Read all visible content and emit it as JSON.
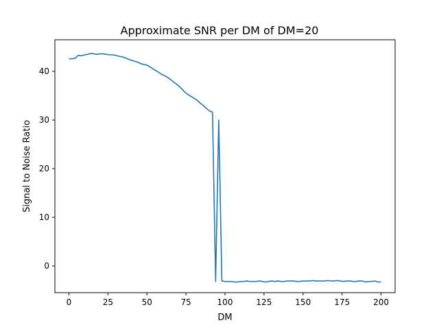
{
  "chart_data": {
    "type": "line",
    "title": "Approximate SNR per DM of DM=20",
    "xlabel": "DM",
    "ylabel": "Signal to Noise Ratio",
    "xlim": [
      -9,
      209
    ],
    "ylim": [
      -5.5,
      46.5
    ],
    "xticks": [
      0,
      25,
      50,
      75,
      100,
      125,
      150,
      175,
      200
    ],
    "yticks": [
      0,
      10,
      20,
      30,
      40
    ],
    "grid": false,
    "color": "#1f77b4",
    "series": [
      {
        "x": [
          0,
          2,
          4,
          6,
          8,
          10,
          12,
          14,
          16,
          18,
          20,
          22,
          24,
          26,
          28,
          30,
          32,
          34,
          36,
          38,
          40,
          42,
          44,
          46,
          48,
          50,
          52,
          54,
          56,
          58,
          60,
          62,
          64,
          66,
          68,
          70,
          72,
          74,
          76,
          78,
          80,
          82,
          84,
          86,
          88,
          90,
          92,
          94,
          96,
          98,
          100,
          102,
          104,
          106,
          108,
          110,
          112,
          114,
          116,
          118,
          120,
          122,
          124,
          126,
          128,
          130,
          132,
          134,
          136,
          138,
          140,
          142,
          144,
          146,
          148,
          150,
          152,
          154,
          156,
          158,
          160,
          162,
          164,
          166,
          168,
          170,
          172,
          174,
          176,
          178,
          180,
          182,
          184,
          186,
          188,
          190,
          192,
          194,
          196,
          198,
          200
        ],
        "y": [
          42.6,
          42.6,
          42.7,
          43.3,
          43.2,
          43.4,
          43.5,
          43.7,
          43.6,
          43.5,
          43.6,
          43.6,
          43.5,
          43.4,
          43.4,
          43.3,
          43.1,
          43.0,
          42.8,
          42.5,
          42.3,
          42.1,
          41.9,
          41.6,
          41.4,
          41.3,
          40.9,
          40.5,
          40.1,
          39.7,
          39.3,
          39.0,
          38.6,
          38.1,
          37.6,
          37.1,
          36.5,
          35.8,
          35.3,
          34.9,
          34.5,
          34.1,
          33.5,
          33.0,
          32.4,
          31.9,
          31.6,
          -3.2,
          30.0,
          -3.1,
          -3.2,
          -3.2,
          -3.2,
          -3.3,
          -3.3,
          -3.2,
          -3.2,
          -3.1,
          -3.2,
          -3.2,
          -3.2,
          -3.1,
          -3.2,
          -3.3,
          -3.2,
          -3.1,
          -3.2,
          -3.1,
          -3.2,
          -3.2,
          -3.1,
          -3.1,
          -3.1,
          -3.2,
          -3.2,
          -3.1,
          -3.1,
          -3.1,
          -3.0,
          -3.1,
          -3.1,
          -3.1,
          -3.1,
          -3.0,
          -3.1,
          -3.1,
          -3.0,
          -3.1,
          -3.2,
          -3.1,
          -3.1,
          -3.2,
          -3.2,
          -3.1,
          -3.1,
          -3.3,
          -3.2,
          -3.2,
          -3.1,
          -3.3,
          -3.3
        ]
      }
    ]
  }
}
